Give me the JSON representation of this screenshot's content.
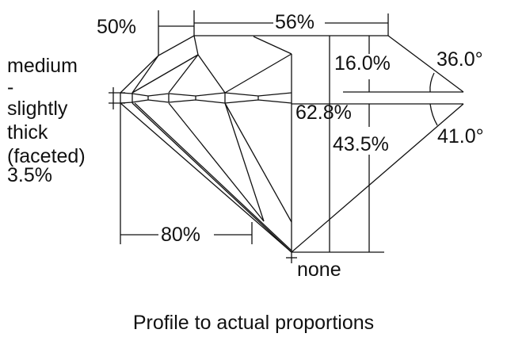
{
  "labels": {
    "crown_height_ratio": "50%",
    "table": "56%",
    "crown_height": "16.0%",
    "crown_angle": "36.0°",
    "total_depth": "62.8%",
    "pavilion_depth": "43.5%",
    "pavilion_angle": "41.0°",
    "lower_half": "80%",
    "culet": "none"
  },
  "girdle": [
    "medium",
    "-",
    "slightly",
    "thick",
    "(faceted)",
    "3.5%"
  ],
  "caption": "Profile to actual proportions",
  "colors": {
    "line": "#111111",
    "background": "#ffffff"
  }
}
